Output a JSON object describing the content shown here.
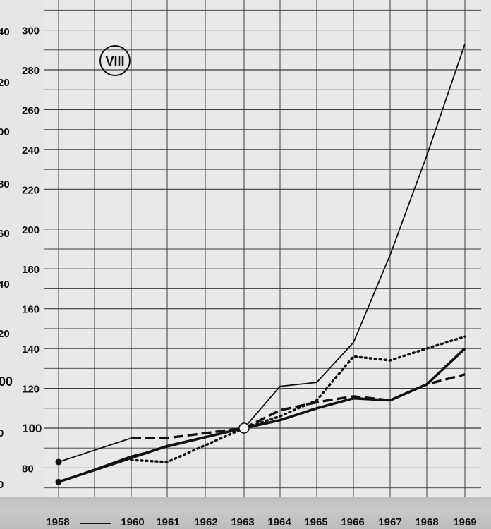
{
  "chart_data": {
    "type": "line",
    "badge": "VIII",
    "x": [
      1958,
      1960,
      1961,
      1962,
      1963,
      1964,
      1965,
      1966,
      1967,
      1968,
      1969
    ],
    "x_tick_labels": [
      "1958",
      "1960",
      "1961",
      "1962",
      "1963",
      "1964",
      "1965",
      "1966",
      "1967",
      "1968",
      "1969"
    ],
    "ylim": [
      70,
      310
    ],
    "y_ticks": [
      80,
      100,
      120,
      140,
      160,
      180,
      200,
      220,
      240,
      260,
      280,
      300
    ],
    "left_edge_labels": [
      "40",
      "20",
      "00",
      "80",
      "60",
      "40",
      "20",
      "00",
      "0",
      "0"
    ],
    "grid": true,
    "series": [
      {
        "style": "thin-solid",
        "points": [
          [
            1958,
            73
          ],
          [
            1960,
            86
          ],
          [
            1963,
            100
          ],
          [
            1964,
            121
          ],
          [
            1965,
            123
          ],
          [
            1966,
            143
          ],
          [
            1967,
            187
          ],
          [
            1968,
            237
          ],
          [
            1969,
            293
          ]
        ]
      },
      {
        "style": "thin-solid",
        "points": [
          [
            1958,
            83
          ],
          [
            1960,
            95
          ]
        ]
      },
      {
        "style": "dotted",
        "points": [
          [
            1960,
            84
          ],
          [
            1961,
            83
          ],
          [
            1963,
            100
          ],
          [
            1964,
            106
          ],
          [
            1965,
            114
          ],
          [
            1966,
            136
          ],
          [
            1967,
            134
          ],
          [
            1968,
            140
          ],
          [
            1969,
            146
          ]
        ]
      },
      {
        "style": "dashed",
        "points": [
          [
            1960,
            95
          ],
          [
            1961,
            95
          ],
          [
            1963,
            100
          ],
          [
            1964,
            109
          ],
          [
            1965,
            113
          ],
          [
            1966,
            116
          ],
          [
            1967,
            114
          ],
          [
            1968,
            122
          ],
          [
            1969,
            127
          ]
        ]
      },
      {
        "style": "thick-solid",
        "points": [
          [
            1958,
            73
          ],
          [
            1961,
            91
          ],
          [
            1963,
            100
          ],
          [
            1964,
            104
          ],
          [
            1965,
            110
          ],
          [
            1966,
            115
          ],
          [
            1967,
            114
          ],
          [
            1968,
            122
          ],
          [
            1969,
            140
          ]
        ]
      }
    ],
    "base_point": [
      1963,
      100
    ]
  }
}
